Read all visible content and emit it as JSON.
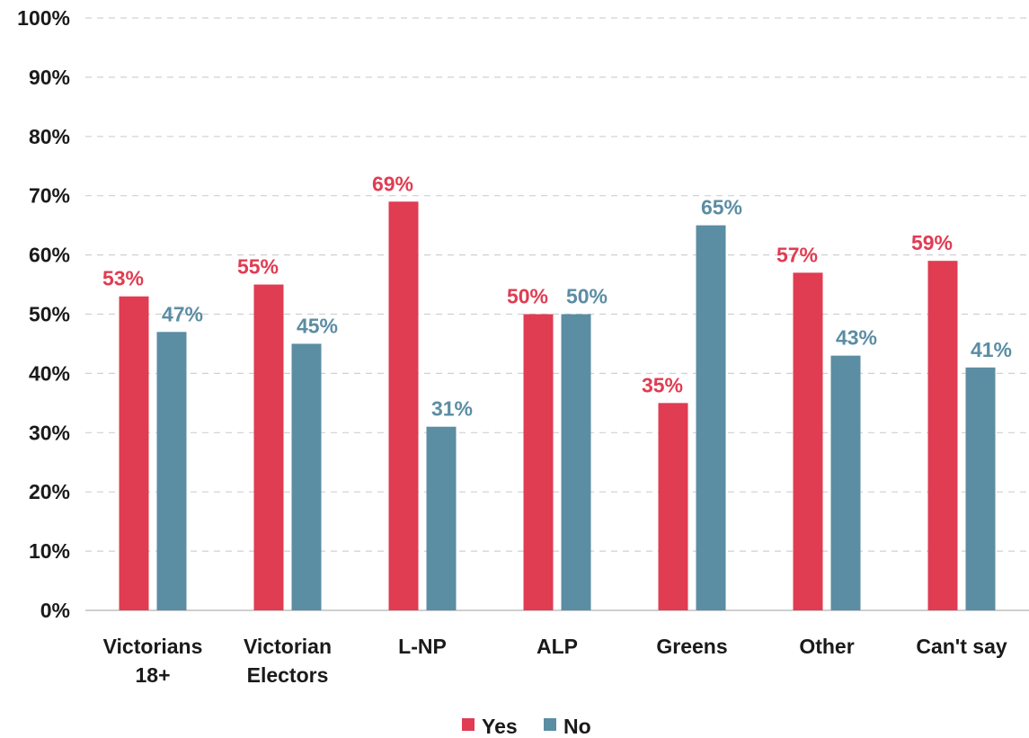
{
  "chart_data": {
    "type": "bar",
    "categories": [
      [
        "Victorians",
        "18+"
      ],
      [
        "Victorian",
        "Electors"
      ],
      [
        "L-NP"
      ],
      [
        "ALP"
      ],
      [
        "Greens"
      ],
      [
        "Other"
      ],
      [
        "Can't say"
      ]
    ],
    "series": [
      {
        "name": "Yes",
        "color": "#E03C52",
        "values": [
          53,
          55,
          69,
          50,
          35,
          57,
          59
        ],
        "labels": [
          "53%",
          "55%",
          "69%",
          "50%",
          "35%",
          "57%",
          "59%"
        ]
      },
      {
        "name": "No",
        "color": "#5B8DA3",
        "values": [
          47,
          45,
          31,
          50,
          65,
          43,
          41
        ],
        "labels": [
          "47%",
          "45%",
          "31%",
          "50%",
          "65%",
          "43%",
          "41%"
        ]
      }
    ],
    "ylim": [
      0,
      100
    ],
    "yticks": [
      "0%",
      "10%",
      "20%",
      "30%",
      "40%",
      "50%",
      "60%",
      "70%",
      "80%",
      "90%",
      "100%"
    ],
    "grid": true,
    "legend_position": "bottom"
  }
}
